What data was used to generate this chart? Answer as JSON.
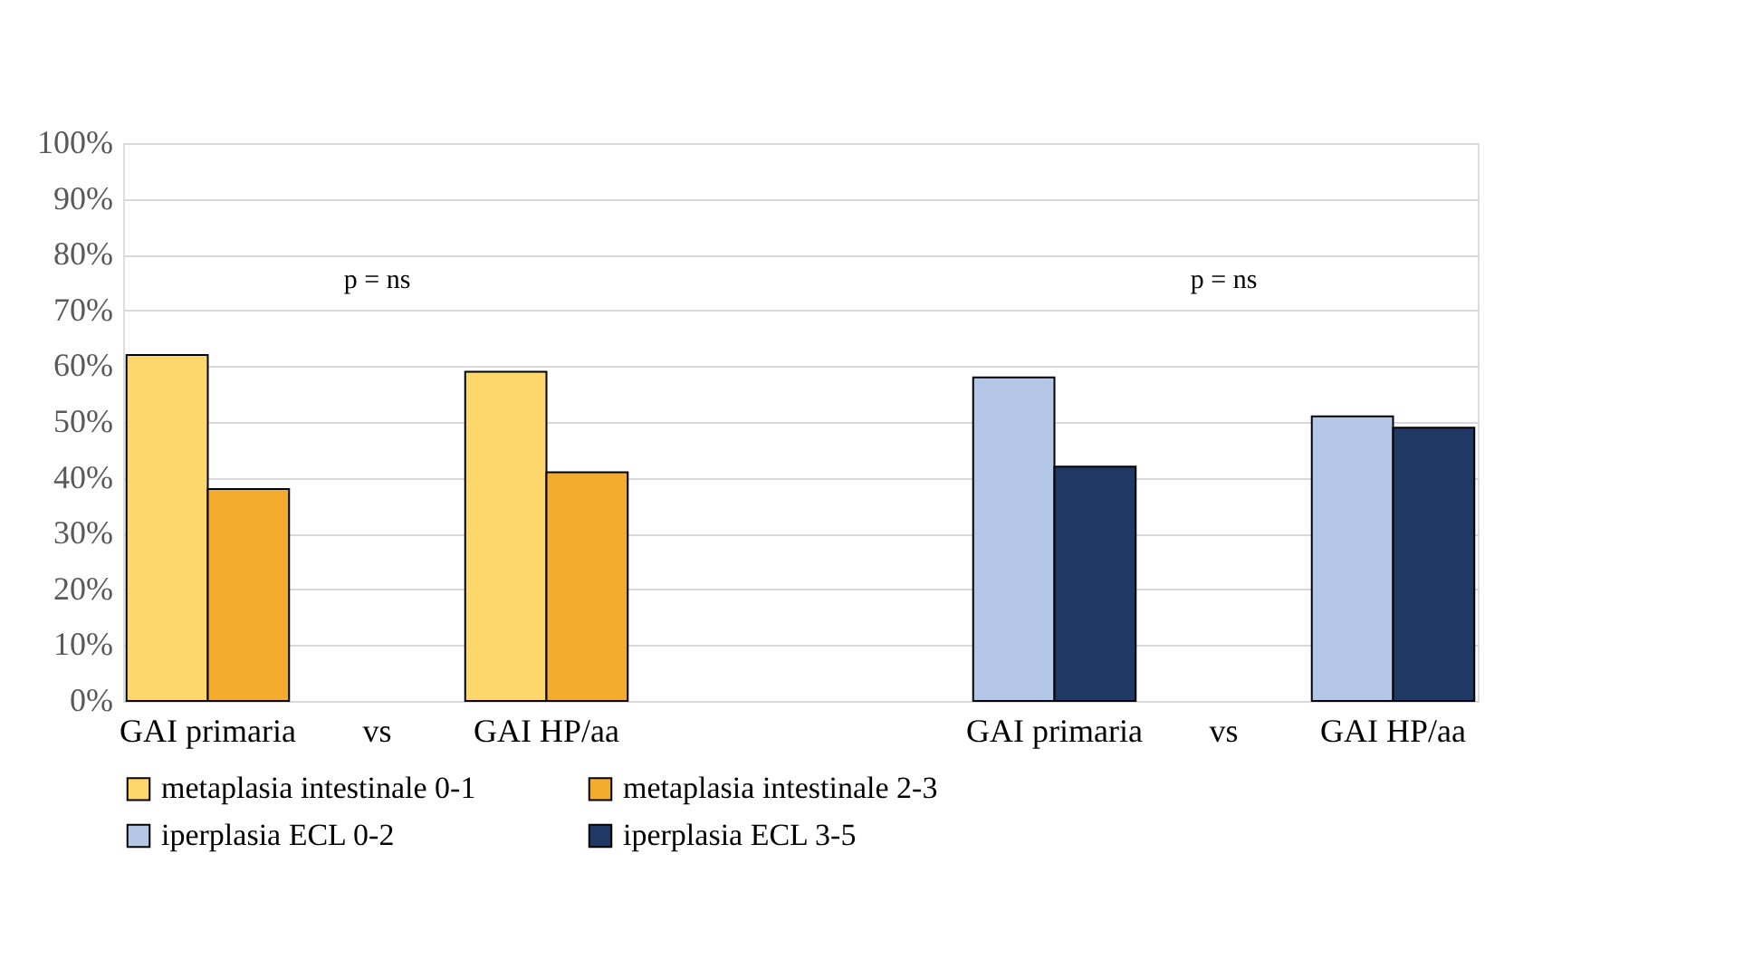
{
  "chart_data": {
    "type": "bar",
    "categories": [
      "GAI primaria",
      "vs",
      "GAI HP/aa",
      null,
      null,
      "GAI primaria",
      "vs",
      "GAI HP/aa"
    ],
    "series": [
      {
        "name": "metaplasia intestinale 0-1",
        "color": "#fdd76b",
        "values": [
          62,
          null,
          59,
          null,
          null,
          null,
          null,
          null
        ]
      },
      {
        "name": "metaplasia intestinale 2-3",
        "color": "#f3ac2e",
        "values": [
          38,
          null,
          41,
          null,
          null,
          null,
          null,
          null
        ]
      },
      {
        "name": "iperplasia ECL 0-2",
        "color": "#b4c7e7",
        "values": [
          null,
          null,
          null,
          null,
          null,
          58,
          null,
          51
        ]
      },
      {
        "name": "iperplasia ECL 3-5",
        "color": "#1f3864",
        "values": [
          null,
          null,
          null,
          null,
          null,
          42,
          null,
          49
        ]
      }
    ],
    "ylim": [
      0,
      100
    ],
    "yticks": [
      {
        "value": 0,
        "label": "0%"
      },
      {
        "value": 10,
        "label": "10%"
      },
      {
        "value": 20,
        "label": "20%"
      },
      {
        "value": 30,
        "label": "30%"
      },
      {
        "value": 40,
        "label": "40%"
      },
      {
        "value": 50,
        "label": "50%"
      },
      {
        "value": 60,
        "label": "60%"
      },
      {
        "value": 70,
        "label": "70%"
      },
      {
        "value": 80,
        "label": "80%"
      },
      {
        "value": 90,
        "label": "90%"
      },
      {
        "value": 100,
        "label": "100%"
      }
    ],
    "annotations": [
      "p = ns",
      "p = ns"
    ],
    "grid": "y",
    "legend": "bottom"
  }
}
